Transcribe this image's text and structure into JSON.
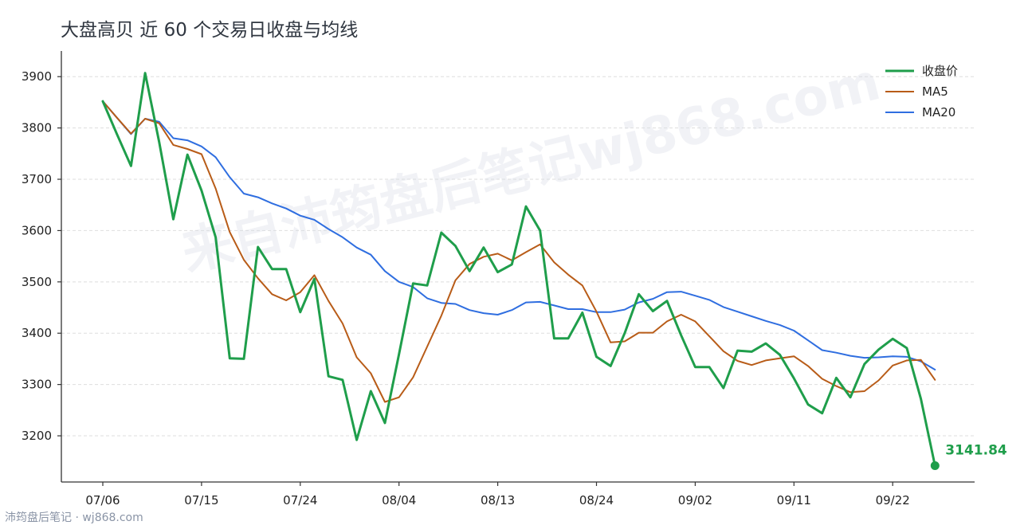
{
  "page": {
    "footer_text": "沛筠盘后笔记 · wj868.com",
    "watermark_text": "来自沛筠盘后笔记wj868.com"
  },
  "chart_data": {
    "type": "line",
    "title": "大盘高贝 近 60 个交易日收盘与均线",
    "xlabel": "",
    "ylabel": "",
    "ylim": [
      3110,
      3950
    ],
    "yticks": [
      3200,
      3300,
      3400,
      3500,
      3600,
      3700,
      3800,
      3900
    ],
    "x_tick_labels": [
      {
        "label": "07/06",
        "index": 0
      },
      {
        "label": "07/15",
        "index": 7
      },
      {
        "label": "07/24",
        "index": 14
      },
      {
        "label": "08/04",
        "index": 21
      },
      {
        "label": "08/13",
        "index": 28
      },
      {
        "label": "08/24",
        "index": 35
      },
      {
        "label": "09/02",
        "index": 42
      },
      {
        "label": "09/11",
        "index": 49
      },
      {
        "label": "09/22",
        "index": 56
      }
    ],
    "grid": true,
    "legend_position": "top-right",
    "series": [
      {
        "name": "收盘价",
        "color": "#1f9e4b",
        "width": 3,
        "values": [
          3852,
          3788,
          3726,
          3907,
          3772,
          3622,
          3748,
          3678,
          3587,
          3351,
          3350,
          3568,
          3525,
          3525,
          3441,
          3506,
          3316,
          3309,
          3192,
          3287,
          3225,
          3359,
          3497,
          3493,
          3596,
          3570,
          3521,
          3567,
          3519,
          3534,
          3647,
          3600,
          3390,
          3390,
          3440,
          3354,
          3336,
          3400,
          3476,
          3443,
          3463,
          3396,
          3334,
          3334,
          3293,
          3366,
          3364,
          3380,
          3358,
          3312,
          3261,
          3244,
          3313,
          3275,
          3340,
          3368,
          3389,
          3371,
          3272,
          3141.84
        ]
      },
      {
        "name": "MA5",
        "color": "#b85c18",
        "width": 2,
        "values": [
          3852,
          3820,
          3789,
          3818,
          3809,
          3767,
          3759,
          3749,
          3682,
          3597,
          3543,
          3507,
          3476,
          3464,
          3480,
          3513,
          3463,
          3419,
          3353,
          3322,
          3266,
          3275,
          3314,
          3374,
          3434,
          3503,
          3535,
          3549,
          3555,
          3542,
          3558,
          3573,
          3538,
          3514,
          3493,
          3442,
          3382,
          3384,
          3401,
          3401,
          3423,
          3436,
          3423,
          3394,
          3365,
          3346,
          3338,
          3347,
          3351,
          3355,
          3336,
          3311,
          3297,
          3285,
          3287,
          3308,
          3337,
          3347,
          3348,
          3309
        ]
      },
      {
        "name": "MA20",
        "color": "#2f6ee0",
        "width": 2,
        "values": [
          3852,
          3820,
          3788,
          3818,
          3812,
          3780,
          3776,
          3764,
          3743,
          3704,
          3672,
          3665,
          3653,
          3643,
          3629,
          3621,
          3603,
          3587,
          3567,
          3553,
          3521,
          3500,
          3490,
          3468,
          3459,
          3457,
          3445,
          3439,
          3436,
          3445,
          3460,
          3461,
          3454,
          3447,
          3447,
          3441,
          3441,
          3446,
          3460,
          3467,
          3480,
          3481,
          3473,
          3465,
          3451,
          3442,
          3433,
          3424,
          3416,
          3405,
          3386,
          3367,
          3362,
          3356,
          3352,
          3353,
          3355,
          3354,
          3345,
          3329
        ]
      }
    ],
    "last_value_label": "3141.84"
  }
}
